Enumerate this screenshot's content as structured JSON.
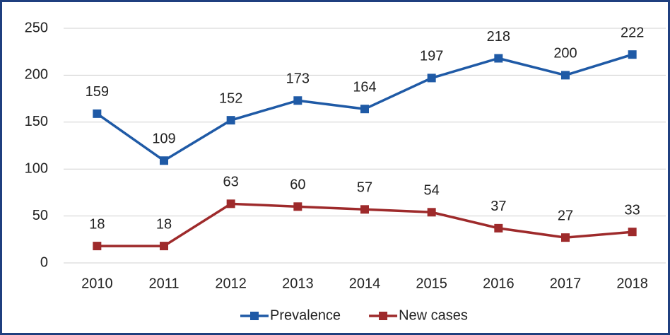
{
  "chart_data": {
    "type": "line",
    "categories": [
      "2010",
      "2011",
      "2012",
      "2013",
      "2014",
      "2015",
      "2016",
      "2017",
      "2018"
    ],
    "series": [
      {
        "name": "Prevalence",
        "color": "#1f5aa6",
        "values": [
          159,
          109,
          152,
          173,
          164,
          197,
          218,
          200,
          222
        ]
      },
      {
        "name": "New cases",
        "color": "#9e2a2b",
        "values": [
          18,
          18,
          63,
          60,
          57,
          54,
          37,
          27,
          33
        ]
      }
    ],
    "ylim": [
      0,
      250
    ],
    "yticks": [
      0,
      50,
      100,
      150,
      200,
      250
    ],
    "grid": true,
    "legend": "bottom"
  }
}
